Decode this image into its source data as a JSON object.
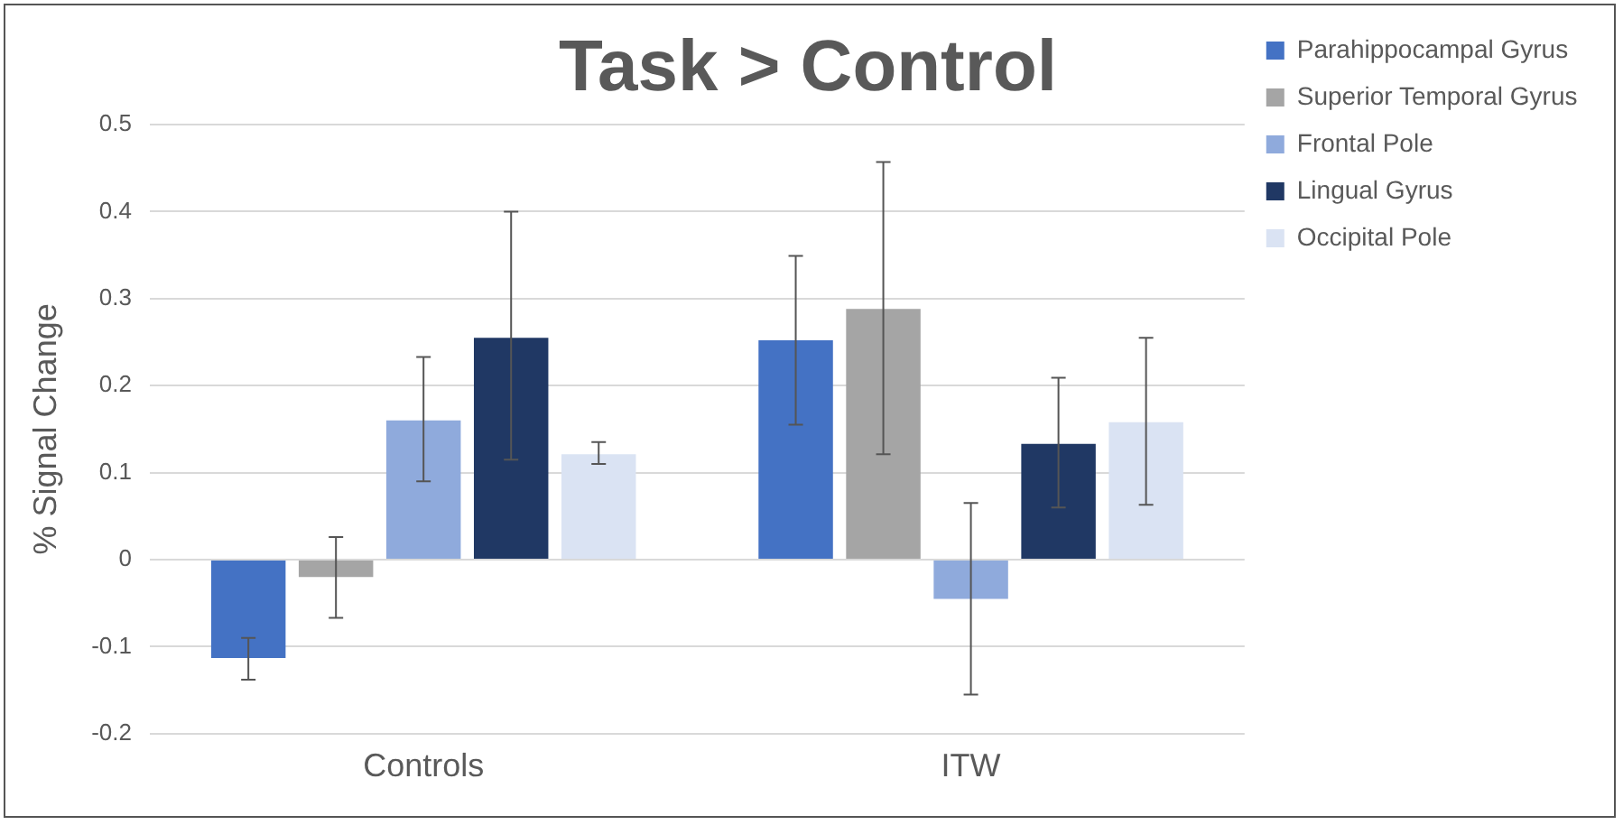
{
  "chart_data": {
    "type": "bar",
    "title": "Task > Control",
    "ylabel": "% Signal Change",
    "categories": [
      "Controls",
      "ITW"
    ],
    "series": [
      {
        "name": "Parahippocampal Gyrus",
        "color": "#4472c4",
        "values": [
          -0.113,
          0.252
        ],
        "errors": [
          [
            -0.138,
            -0.09
          ],
          [
            0.155,
            0.349
          ]
        ]
      },
      {
        "name": "Superior Temporal Gyrus",
        "color": "#a5a5a5",
        "values": [
          -0.02,
          0.288
        ],
        "errors": [
          [
            -0.067,
            0.026
          ],
          [
            0.121,
            0.457
          ]
        ]
      },
      {
        "name": "Frontal Pole",
        "color": "#8faadc",
        "values": [
          0.16,
          -0.045
        ],
        "errors": [
          [
            0.09,
            0.233
          ],
          [
            -0.155,
            0.065
          ]
        ]
      },
      {
        "name": "Lingual Gyrus",
        "color": "#203864",
        "values": [
          0.255,
          0.133
        ],
        "errors": [
          [
            0.115,
            0.4
          ],
          [
            0.06,
            0.209
          ]
        ]
      },
      {
        "name": "Occipital Pole",
        "color": "#dae3f3",
        "values": [
          0.121,
          0.158
        ],
        "errors": [
          [
            0.11,
            0.135
          ],
          [
            0.063,
            0.255
          ]
        ]
      }
    ],
    "ylim": [
      -0.2,
      0.5
    ],
    "yticks": [
      -0.2,
      -0.1,
      0,
      0.1,
      0.2,
      0.3,
      0.4,
      0.5
    ],
    "grid": "y",
    "legend": "top right"
  }
}
